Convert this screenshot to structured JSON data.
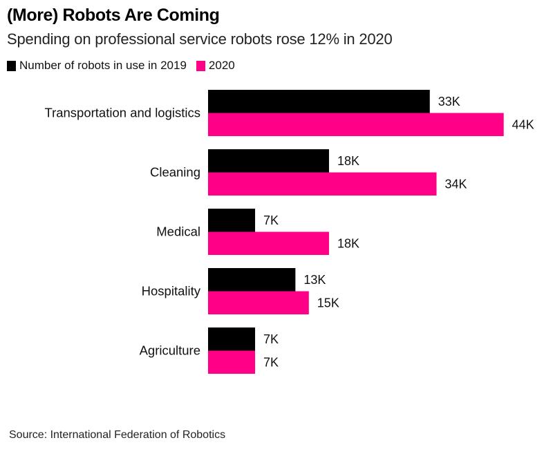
{
  "chart_data": {
    "type": "bar",
    "orientation": "horizontal",
    "title": "(More) Robots Are Coming",
    "subtitle": "Spending on professional service robots rose 12% in 2020",
    "categories": [
      "Transportation and logistics",
      "Cleaning",
      "Medical",
      "Hospitality",
      "Agriculture"
    ],
    "series": [
      {
        "name": "Number of robots in use in 2019",
        "color": "#000000",
        "values": [
          33,
          18,
          7,
          13,
          7
        ],
        "labels": [
          "33K",
          "18K",
          "7K",
          "13K",
          "7K"
        ]
      },
      {
        "name": "2020",
        "color": "#FF0087",
        "values": [
          44,
          34,
          18,
          15,
          7
        ],
        "labels": [
          "44K",
          "34K",
          "18K",
          "15K",
          "7K"
        ]
      }
    ],
    "units": "thousands of robots",
    "xlabel": "",
    "ylabel": "",
    "xlim": [
      0,
      44
    ],
    "grid": false,
    "legend": "top-left",
    "source": "Source: International Federation of Robotics"
  }
}
